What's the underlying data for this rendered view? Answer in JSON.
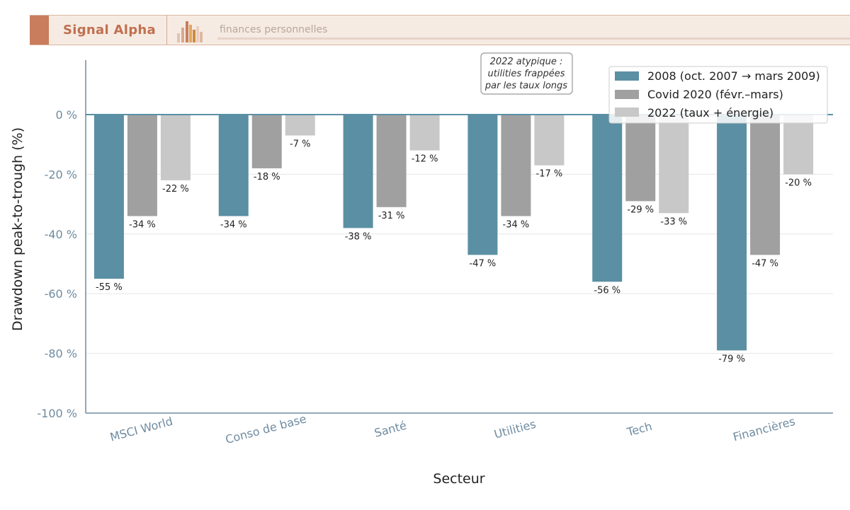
{
  "header": {
    "brand": "Signal Alpha",
    "tagline": "finances personnelles"
  },
  "colors": {
    "brand": "#c97d5d",
    "axis": "#6e8ba0",
    "zero_line": "#5b8fa3"
  },
  "chart_data": {
    "type": "bar",
    "title": "",
    "xlabel": "Secteur",
    "ylabel": "Drawdown peak-to-trough (%)",
    "ylim": [
      -100,
      18
    ],
    "yticks": [
      0,
      -20,
      -40,
      -60,
      -80,
      -100
    ],
    "ytick_labels": [
      "0 %",
      "-20 %",
      "-40 %",
      "-60 %",
      "-80 %",
      "-100 %"
    ],
    "categories": [
      "MSCI World",
      "Conso de base",
      "Santé",
      "Utilities",
      "Tech",
      "Financières"
    ],
    "series": [
      {
        "name": "2008 (oct. 2007 → mars 2009)",
        "color": "#5b8fa3",
        "values": [
          -55,
          -34,
          -38,
          -47,
          -56,
          -79
        ],
        "labels": [
          "-55 %",
          "-34 %",
          "-38 %",
          "-47 %",
          "-56 %",
          "-79 %"
        ]
      },
      {
        "name": "Covid 2020 (févr.–mars)",
        "color": "#a0a0a0",
        "values": [
          -34,
          -18,
          -31,
          -34,
          -29,
          -47
        ],
        "labels": [
          "-34 %",
          "-18 %",
          "-31 %",
          "-34 %",
          "-29 %",
          "-47 %"
        ]
      },
      {
        "name": "2022 (taux + énergie)",
        "color": "#c8c8c8",
        "values": [
          -22,
          -7,
          -12,
          -17,
          -33,
          -20
        ],
        "labels": [
          "-22 %",
          "-7 %",
          "-12 %",
          "-17 %",
          "-33 %",
          "-20 %"
        ]
      }
    ],
    "annotation": {
      "lines": [
        "2022 atypique :",
        "utilities frappées",
        "par les taux longs"
      ]
    },
    "legend_position": "top-right",
    "grid": true
  }
}
